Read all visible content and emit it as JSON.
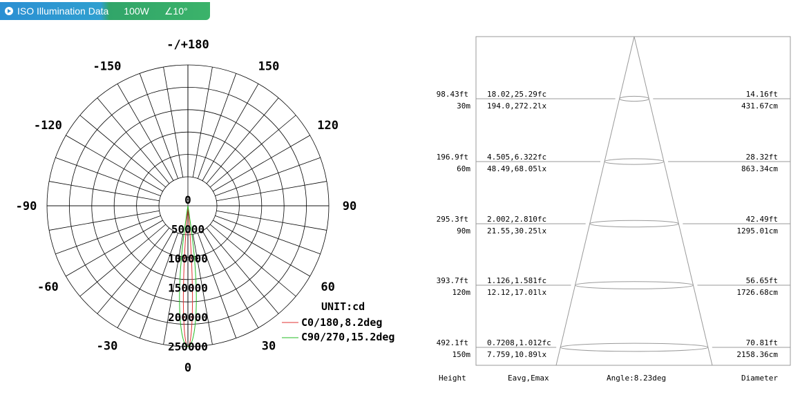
{
  "header": {
    "title": "ISO Illumination  Data",
    "power": "100W",
    "beam_angle": "∠10°",
    "accent_left": "#2b8fd3",
    "accent_right": "#3bb36a"
  },
  "chart_data": [
    {
      "type": "polar",
      "angle_labels": [
        {
          "text": "-/+180",
          "deg": 180
        },
        {
          "text": "-150",
          "deg": -150
        },
        {
          "text": "150",
          "deg": 150
        },
        {
          "text": "-120",
          "deg": -120
        },
        {
          "text": "120",
          "deg": 120
        },
        {
          "text": "-90",
          "deg": -90
        },
        {
          "text": "90",
          "deg": 90
        },
        {
          "text": "-60",
          "deg": -60
        },
        {
          "text": "60",
          "deg": 60
        },
        {
          "text": "-30",
          "deg": -30
        },
        {
          "text": "30",
          "deg": 30
        },
        {
          "text": "0",
          "deg": 0
        }
      ],
      "radial_labels": [
        "0",
        "50000",
        "100000",
        "150000",
        "200000",
        "250000"
      ],
      "rmax": 250000,
      "unit_label": "UNIT:cd",
      "series": [
        {
          "name": "C0/180,8.2deg",
          "color": "#e03030",
          "beam_angle": 8.2,
          "peak": 272000
        },
        {
          "name": "C90/270,15.2deg",
          "color": "#22bb22",
          "beam_angle": 15.2,
          "peak": 272000
        }
      ]
    },
    {
      "type": "table",
      "beam_angle_label": "Angle:8.23deg",
      "columns": [
        "Height",
        "Eavg,Emax",
        "Angle:8.23deg",
        "Diameter"
      ],
      "rows": [
        {
          "height_ft": "98.43ft",
          "height_m": "30m",
          "fc": "18.02,25.29fc",
          "lx": "194.0,272.2lx",
          "dia_ft": "14.16ft",
          "dia_cm": "431.67cm"
        },
        {
          "height_ft": "196.9ft",
          "height_m": "60m",
          "fc": "4.505,6.322fc",
          "lx": "48.49,68.05lx",
          "dia_ft": "28.32ft",
          "dia_cm": "863.34cm"
        },
        {
          "height_ft": "295.3ft",
          "height_m": "90m",
          "fc": "2.002,2.810fc",
          "lx": "21.55,30.25lx",
          "dia_ft": "42.49ft",
          "dia_cm": "1295.01cm"
        },
        {
          "height_ft": "393.7ft",
          "height_m": "120m",
          "fc": "1.126,1.581fc",
          "lx": "12.12,17.01lx",
          "dia_ft": "56.65ft",
          "dia_cm": "1726.68cm"
        },
        {
          "height_ft": "492.1ft",
          "height_m": "150m",
          "fc": "0.7208,1.012fc",
          "lx": "7.759,10.89lx",
          "dia_ft": "70.81ft",
          "dia_cm": "2158.36cm"
        }
      ]
    }
  ]
}
